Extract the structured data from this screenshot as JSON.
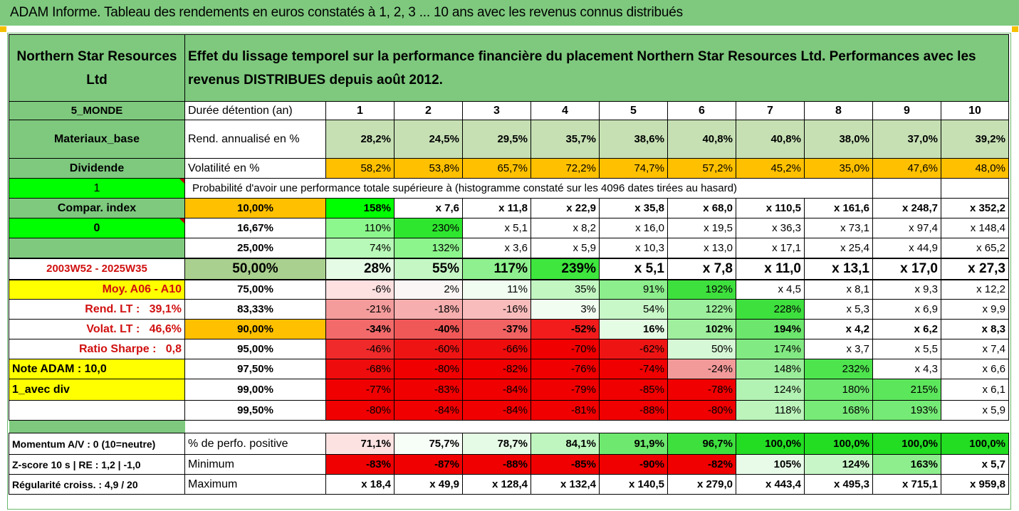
{
  "title": "ADAM Informe. Tableau des rendements en euros constatés à 1, 2, 3 ... 10 ans avec les revenus connus distribués",
  "header": {
    "company": "Northern Star Resources Ltd",
    "description": "Effet du lissage temporel sur la performance financière du placement Northern Star Resources Ltd. Performances avec les revenus DISTRIBUES depuis août 2012."
  },
  "sidebar": {
    "zone": "5_MONDE",
    "sector": "Materiaux_base",
    "dividend": "Dividende",
    "one": "1",
    "compar": "Compar. index",
    "zero": "0",
    "period": "2003W52 - 2025W35",
    "moy": "Moy. A06 - A10",
    "rend_lt": "Rend. LT :   39,1%",
    "volat_lt": "Volat. LT :   46,6%",
    "sharpe": "Ratio Sharpe :   0,8",
    "note": "Note ADAM : 10,0",
    "avec_div": "1_avec div",
    "momentum": "Momentum A/V : 0 (10=neutre)",
    "zscore": "Z-score 10 s  | RE : 1,2 | -1,0",
    "regularite": "Régularité croiss. : 4,9 / 20"
  },
  "years": {
    "label": "Durée détention (an)",
    "values": [
      "1",
      "2",
      "3",
      "4",
      "5",
      "6",
      "7",
      "8",
      "9",
      "10"
    ]
  },
  "rend": {
    "label": "Rend. annualisé en %",
    "values": [
      "28,2%",
      "24,5%",
      "29,5%",
      "35,7%",
      "38,6%",
      "40,8%",
      "40,8%",
      "38,0%",
      "37,0%",
      "39,2%"
    ]
  },
  "vol": {
    "label": "Volatilité en %",
    "values": [
      "58,2%",
      "53,8%",
      "65,7%",
      "72,2%",
      "74,7%",
      "57,2%",
      "45,2%",
      "35,0%",
      "47,6%",
      "48,0%"
    ]
  },
  "prob_label": "Probabilité d'avoir une performance totale supérieure à (histogramme constaté sur les 4096 dates tirées au hasard)",
  "rows": [
    {
      "pct": "10,00%",
      "values": [
        "158%",
        "x 7,6",
        "x 11,8",
        "x 22,9",
        "x 35,8",
        "x 68,0",
        "x 110,5",
        "x 161,6",
        "x 248,7",
        "x 352,2"
      ]
    },
    {
      "pct": "16,67%",
      "values": [
        "110%",
        "230%",
        "x 5,1",
        "x 8,2",
        "x 16,0",
        "x 19,5",
        "x 36,3",
        "x 73,1",
        "x 97,4",
        "x 148,4"
      ]
    },
    {
      "pct": "25,00%",
      "values": [
        "74%",
        "132%",
        "x 3,6",
        "x 5,9",
        "x 10,3",
        "x 13,0",
        "x 17,1",
        "x 25,4",
        "x 44,9",
        "x 65,2"
      ]
    },
    {
      "pct": "50,00%",
      "values": [
        "28%",
        "55%",
        "117%",
        "239%",
        "x 5,1",
        "x 7,8",
        "x 11,0",
        "x 13,1",
        "x 17,0",
        "x 27,3"
      ]
    },
    {
      "pct": "75,00%",
      "values": [
        "-6%",
        "2%",
        "11%",
        "35%",
        "91%",
        "192%",
        "x 4,5",
        "x 8,1",
        "x 9,3",
        "x 12,2"
      ]
    },
    {
      "pct": "83,33%",
      "values": [
        "-21%",
        "-18%",
        "-16%",
        "3%",
        "54%",
        "122%",
        "228%",
        "x 5,3",
        "x 6,9",
        "x 9,9"
      ]
    },
    {
      "pct": "90,00%",
      "values": [
        "-34%",
        "-40%",
        "-37%",
        "-52%",
        "16%",
        "102%",
        "194%",
        "x 4,2",
        "x 6,2",
        "x 8,3"
      ]
    },
    {
      "pct": "95,00%",
      "values": [
        "-46%",
        "-60%",
        "-66%",
        "-70%",
        "-62%",
        "50%",
        "174%",
        "x 3,7",
        "x 5,5",
        "x 7,4"
      ]
    },
    {
      "pct": "97,50%",
      "values": [
        "-68%",
        "-80%",
        "-82%",
        "-76%",
        "-74%",
        "-24%",
        "148%",
        "232%",
        "x 4,3",
        "x 6,6"
      ]
    },
    {
      "pct": "99,00%",
      "values": [
        "-77%",
        "-83%",
        "-84%",
        "-79%",
        "-85%",
        "-78%",
        "124%",
        "180%",
        "215%",
        "x 6,1"
      ]
    },
    {
      "pct": "99,50%",
      "values": [
        "-80%",
        "-84%",
        "-84%",
        "-81%",
        "-88%",
        "-80%",
        "118%",
        "168%",
        "193%",
        "x 5,9"
      ]
    }
  ],
  "positive": {
    "label": "% de perfo. positive",
    "values": [
      "71,1%",
      "75,7%",
      "78,7%",
      "84,1%",
      "91,9%",
      "96,7%",
      "100,0%",
      "100,0%",
      "100,0%",
      "100,0%"
    ]
  },
  "minimum": {
    "label": "Minimum",
    "values": [
      "-83%",
      "-87%",
      "-88%",
      "-85%",
      "-90%",
      "-82%",
      "105%",
      "124%",
      "163%",
      "x 5,7"
    ]
  },
  "maximum": {
    "label": "Maximum",
    "values": [
      "x 18,4",
      "x 49,9",
      "x 128,4",
      "x 132,4",
      "x 140,5",
      "x 279,0",
      "x 443,4",
      "x 495,3",
      "x 715,1",
      "x 959,8"
    ]
  },
  "colors": {
    "header_green": "#7ec97e",
    "rend_bg": "#c6e0b4",
    "vol_bg": "#ffc000",
    "bright_green": "#00ff00",
    "yellow": "#ffff00",
    "red": "#ff0000",
    "label_red": "#d01010"
  },
  "cell_colors": [
    [
      "#00ff00",
      "#ffffff",
      "#ffffff",
      "#ffffff",
      "#ffffff",
      "#ffffff",
      "#ffffff",
      "#ffffff",
      "#ffffff",
      "#ffffff"
    ],
    [
      "#8cf78c",
      "#2ee62e",
      "#ffffff",
      "#ffffff",
      "#ffffff",
      "#ffffff",
      "#ffffff",
      "#ffffff",
      "#ffffff",
      "#ffffff"
    ],
    [
      "#b8f8b8",
      "#8cf58c",
      "#ffffff",
      "#ffffff",
      "#ffffff",
      "#ffffff",
      "#ffffff",
      "#ffffff",
      "#ffffff",
      "#ffffff"
    ],
    [
      "#e6fbe6",
      "#c4f7c4",
      "#8ef08e",
      "#3ee63e",
      "#ffffff",
      "#ffffff",
      "#ffffff",
      "#ffffff",
      "#ffffff",
      "#ffffff"
    ],
    [
      "#fde0e0",
      "#fbf6f6",
      "#f0fdf0",
      "#c2f7c2",
      "#8cee8c",
      "#3ee03e",
      "#ffffff",
      "#ffffff",
      "#ffffff",
      "#ffffff"
    ],
    [
      "#f49b9b",
      "#f6aeae",
      "#f8bcbc",
      "#f2fdf2",
      "#c8f7c8",
      "#9cef9c",
      "#3ee03e",
      "#ffffff",
      "#ffffff",
      "#ffffff"
    ],
    [
      "#f26a6a",
      "#f05858",
      "#f16262",
      "#f21c1c",
      "#e4fbe4",
      "#a0ef9e",
      "#6ce66c",
      "#ffffff",
      "#ffffff",
      "#ffffff"
    ],
    [
      "#f02a2a",
      "#ef1414",
      "#ef0c0c",
      "#f00000",
      "#ef1414",
      "#d6f8d6",
      "#82ea82",
      "#ffffff",
      "#ffffff",
      "#ffffff"
    ],
    [
      "#ef0c0c",
      "#f00000",
      "#f00000",
      "#f00000",
      "#f00000",
      "#f29a9a",
      "#9aee9a",
      "#4ee44e",
      "#ffffff",
      "#ffffff"
    ],
    [
      "#f00000",
      "#f00000",
      "#f00000",
      "#f00000",
      "#f00000",
      "#f00000",
      "#b2f2b2",
      "#6ce86c",
      "#5ce65c",
      "#ffffff"
    ],
    [
      "#f00000",
      "#f00000",
      "#f00000",
      "#f00000",
      "#f00000",
      "#f00000",
      "#bcf4bc",
      "#78ea78",
      "#76ea76",
      "#ffffff"
    ]
  ],
  "positive_colors": [
    "#fde2e2",
    "#f7fdf7",
    "#e6fbe6",
    "#bff6bf",
    "#6ee86e",
    "#3ee03e",
    "#22dd22",
    "#22dd22",
    "#22dd22",
    "#22dd22"
  ],
  "minimum_colors": [
    "#f00000",
    "#f00000",
    "#f00000",
    "#f00000",
    "#f00000",
    "#f00000",
    "#e8fbe8",
    "#c8f6c8",
    "#8eee8e",
    "#ffffff"
  ],
  "pct_colors": [
    "#ffc000",
    "#ffffff",
    "#ffffff",
    "#a9d08e",
    "#ffffff",
    "#ffffff",
    "#ffc000",
    "#ffffff",
    "#ffffff",
    "#ffffff",
    "#ffffff"
  ]
}
